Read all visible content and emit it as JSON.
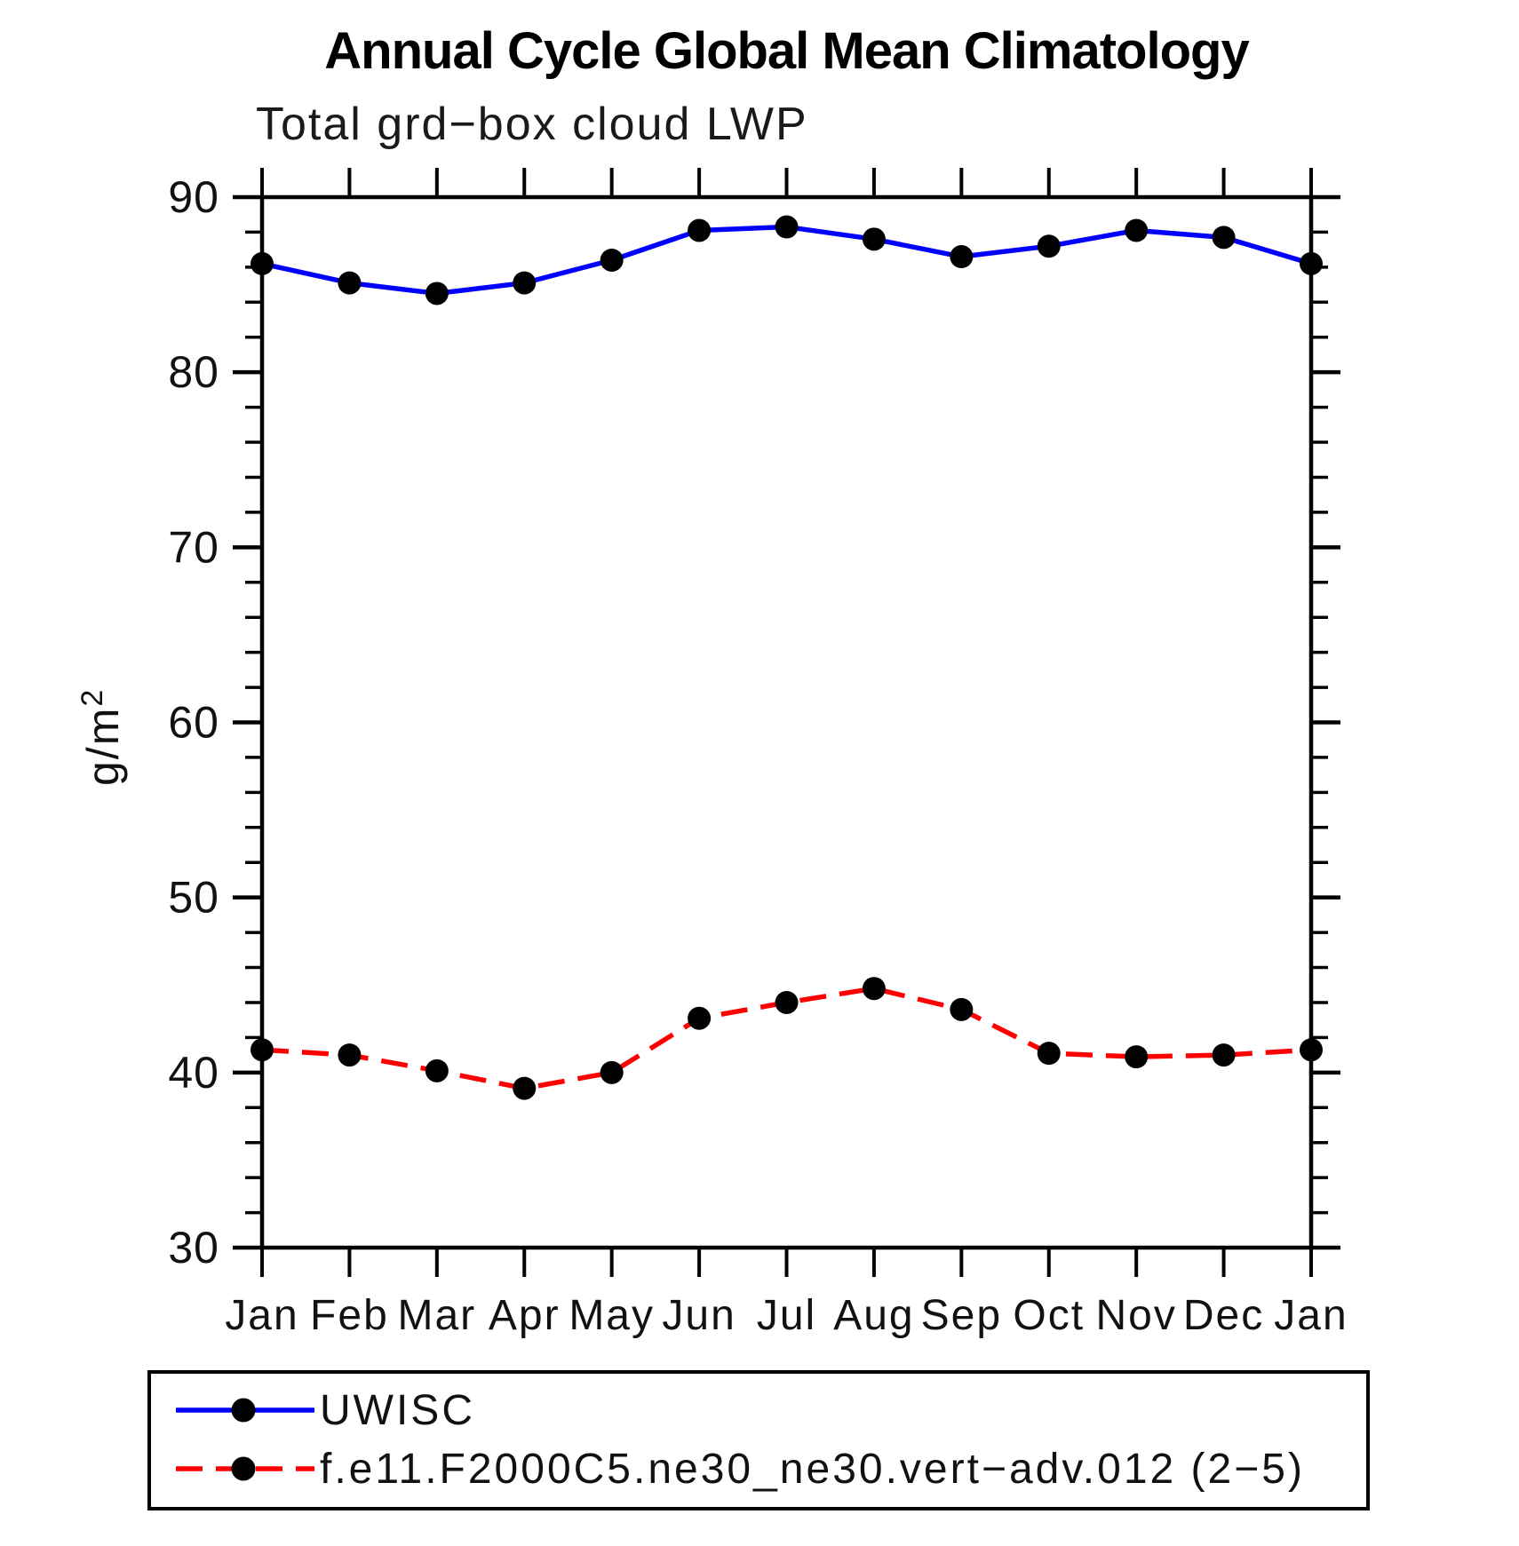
{
  "chart_data": {
    "type": "line",
    "title": "Annual Cycle Global Mean Climatology",
    "subtitle": "Total grd−box cloud LWP",
    "ylabel": "g/m²",
    "xlabel": "",
    "categories": [
      "Jan",
      "Feb",
      "Mar",
      "Apr",
      "May",
      "Jun",
      "Jul",
      "Aug",
      "Sep",
      "Oct",
      "Nov",
      "Dec",
      "Jan"
    ],
    "ylim": [
      30,
      90
    ],
    "ytick_major_step": 10,
    "ytick_minor_step": 2,
    "ytick_labels": [
      "30",
      "40",
      "50",
      "60",
      "70",
      "80",
      "90"
    ],
    "grid": "off",
    "legend_position": "bottom-box",
    "axis_color": "#000000",
    "series": [
      {
        "name": "UWISC",
        "color": "#0000ff",
        "line_style": "solid",
        "marker": "circle",
        "marker_color": "#000000",
        "values": [
          86.2,
          85.1,
          84.5,
          85.1,
          86.4,
          88.1,
          88.3,
          87.6,
          86.6,
          87.2,
          88.1,
          87.7,
          86.2
        ]
      },
      {
        "name": "f.e11.F2000C5.ne30_ne30.vert−adv.012 (2−5)",
        "color": "#ff0000",
        "line_style": "dashed",
        "marker": "circle",
        "marker_color": "#000000",
        "values": [
          41.3,
          41.0,
          40.1,
          39.1,
          40.0,
          43.1,
          44.0,
          44.8,
          43.6,
          41.1,
          40.9,
          41.0,
          41.3
        ]
      }
    ]
  }
}
